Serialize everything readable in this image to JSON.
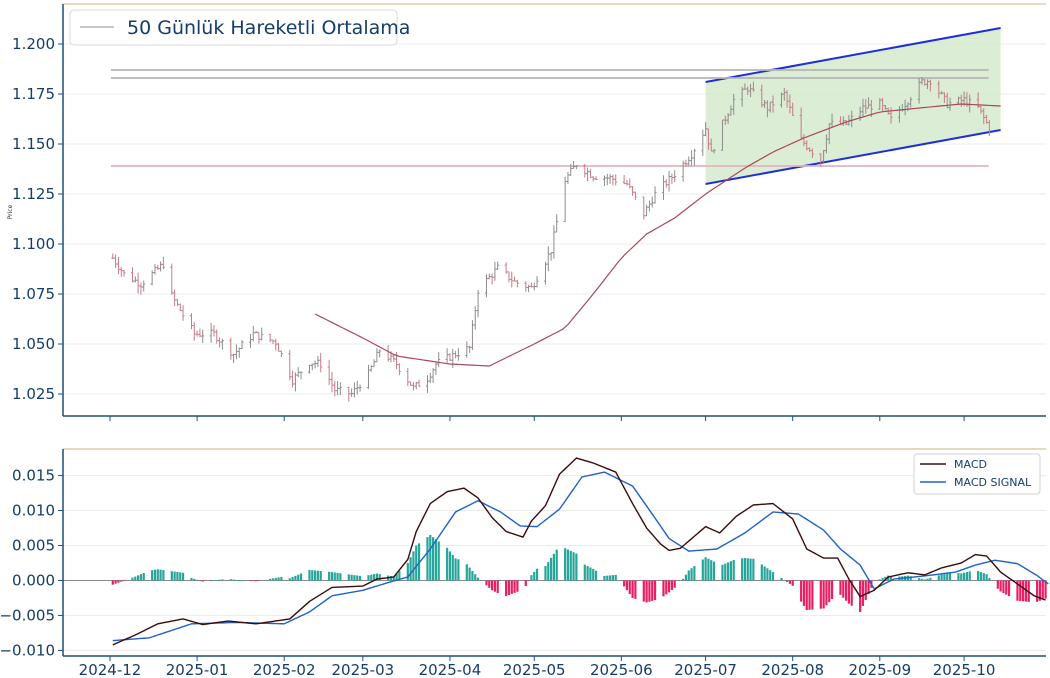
{
  "chart_data": [
    {
      "type": "candlestick",
      "ylabel": "Price",
      "ylim": [
        1.014,
        1.22
      ],
      "yticks": [
        "1.025",
        "1.050",
        "1.075",
        "1.100",
        "1.125",
        "1.150",
        "1.175",
        "1.200"
      ],
      "legend": {
        "position": "top-left",
        "entries": [
          "50 Günlük Hareketli Ortalama"
        ]
      },
      "x_start": "2024-12-01",
      "x_end": "2025-10-16",
      "price_keypoints": [
        [
          "2024-12-02",
          1.093
        ],
        [
          "2024-12-06",
          1.085
        ],
        [
          "2024-12-12",
          1.08
        ],
        [
          "2024-12-20",
          1.09
        ],
        [
          "2024-12-23",
          1.074
        ],
        [
          "2024-12-31",
          1.055
        ],
        [
          "2025-01-07",
          1.055
        ],
        [
          "2025-01-14",
          1.045
        ],
        [
          "2025-01-21",
          1.055
        ],
        [
          "2025-01-29",
          1.051
        ],
        [
          "2025-02-04",
          1.032
        ],
        [
          "2025-02-10",
          1.041
        ],
        [
          "2025-02-14",
          1.04
        ],
        [
          "2025-02-19",
          1.027
        ],
        [
          "2025-02-25",
          1.025
        ],
        [
          "2025-03-03",
          1.035
        ],
        [
          "2025-03-07",
          1.047
        ],
        [
          "2025-03-13",
          1.04
        ],
        [
          "2025-03-19",
          1.028
        ],
        [
          "2025-03-24",
          1.033
        ],
        [
          "2025-03-27",
          1.04
        ],
        [
          "2025-04-03",
          1.045
        ],
        [
          "2025-04-08",
          1.048
        ],
        [
          "2025-04-11",
          1.077
        ],
        [
          "2025-04-18",
          1.088
        ],
        [
          "2025-04-24",
          1.081
        ],
        [
          "2025-04-30",
          1.078
        ],
        [
          "2025-05-07",
          1.097
        ],
        [
          "2025-05-12",
          1.132
        ],
        [
          "2025-05-16",
          1.14
        ],
        [
          "2025-05-22",
          1.134
        ],
        [
          "2025-05-28",
          1.133
        ],
        [
          "2025-06-03",
          1.13
        ],
        [
          "2025-06-09",
          1.115
        ],
        [
          "2025-06-13",
          1.125
        ],
        [
          "2025-06-20",
          1.135
        ],
        [
          "2025-06-26",
          1.145
        ],
        [
          "2025-07-01",
          1.158
        ],
        [
          "2025-07-03",
          1.145
        ],
        [
          "2025-07-07",
          1.16
        ],
        [
          "2025-07-11",
          1.172
        ],
        [
          "2025-07-16",
          1.178
        ],
        [
          "2025-07-23",
          1.168
        ],
        [
          "2025-07-29",
          1.175
        ],
        [
          "2025-08-04",
          1.152
        ],
        [
          "2025-08-11",
          1.142
        ],
        [
          "2025-08-14",
          1.16
        ],
        [
          "2025-08-20",
          1.16
        ],
        [
          "2025-08-26",
          1.168
        ],
        [
          "2025-09-01",
          1.17
        ],
        [
          "2025-09-05",
          1.162
        ],
        [
          "2025-09-11",
          1.172
        ],
        [
          "2025-09-16",
          1.181
        ],
        [
          "2025-09-19",
          1.182
        ],
        [
          "2025-09-25",
          1.17
        ],
        [
          "2025-10-01",
          1.172
        ],
        [
          "2025-10-06",
          1.168
        ],
        [
          "2025-10-10",
          1.158
        ]
      ],
      "ma50": [
        [
          "2025-02-12",
          1.065
        ],
        [
          "2025-03-01",
          1.053
        ],
        [
          "2025-03-13",
          1.044
        ],
        [
          "2025-04-01",
          1.04
        ],
        [
          "2025-04-15",
          1.039
        ],
        [
          "2025-05-01",
          1.05
        ],
        [
          "2025-05-12",
          1.058
        ],
        [
          "2025-05-22",
          1.075
        ],
        [
          "2025-06-01",
          1.093
        ],
        [
          "2025-06-10",
          1.105
        ],
        [
          "2025-06-20",
          1.113
        ],
        [
          "2025-07-01",
          1.125
        ],
        [
          "2025-07-15",
          1.138
        ],
        [
          "2025-07-25",
          1.146
        ],
        [
          "2025-08-05",
          1.153
        ],
        [
          "2025-08-20",
          1.161
        ],
        [
          "2025-09-01",
          1.166
        ],
        [
          "2025-09-15",
          1.168
        ],
        [
          "2025-09-30",
          1.17
        ],
        [
          "2025-10-14",
          1.169
        ]
      ],
      "horizontal_levels": [
        {
          "value": 1.187,
          "color": "#b5b5b5",
          "from": "2024-12-01",
          "to": "2025-10-14"
        },
        {
          "value": 1.183,
          "color": "#b5b5b5",
          "from": "2024-12-01",
          "to": "2025-10-14"
        },
        {
          "value": 1.139,
          "color": "#e0b5bd",
          "from": "2024-12-01",
          "to": "2025-10-14"
        }
      ],
      "channel": {
        "from": "2025-07-01",
        "to": "2025-10-14",
        "upper": [
          1.181,
          1.208
        ],
        "lower": [
          1.13,
          1.157
        ],
        "line_color": "#1f2fd6",
        "fill_color": "#cfe8c7"
      }
    },
    {
      "type": "line",
      "ylim": [
        -0.0108,
        0.0188
      ],
      "yticks": [
        "−0.010",
        "−0.005",
        "0.000",
        "0.005",
        "0.010",
        "0.015"
      ],
      "xticks": [
        "2024-12",
        "2025-01",
        "2025-02",
        "2025-03",
        "2025-04",
        "2025-05",
        "2025-06",
        "2025-07",
        "2025-08",
        "2025-09",
        "2025-10"
      ],
      "legend": {
        "position": "top-right",
        "entries": [
          "MACD",
          "MACD SIGNAL"
        ]
      },
      "macd": [
        [
          "2024-12-02",
          -0.0092
        ],
        [
          "2024-12-10",
          -0.0078
        ],
        [
          "2024-12-18",
          -0.0062
        ],
        [
          "2024-12-27",
          -0.0055
        ],
        [
          "2025-01-03",
          -0.0063
        ],
        [
          "2025-01-12",
          -0.0058
        ],
        [
          "2025-01-22",
          -0.0062
        ],
        [
          "2025-02-03",
          -0.0055
        ],
        [
          "2025-02-10",
          -0.003
        ],
        [
          "2025-02-18",
          -0.001
        ],
        [
          "2025-03-01",
          -0.0008
        ],
        [
          "2025-03-06",
          0.0002
        ],
        [
          "2025-03-12",
          0.0005
        ],
        [
          "2025-03-17",
          0.003
        ],
        [
          "2025-03-20",
          0.007
        ],
        [
          "2025-03-25",
          0.011
        ],
        [
          "2025-03-31",
          0.0127
        ],
        [
          "2025-04-06",
          0.0132
        ],
        [
          "2025-04-11",
          0.0118
        ],
        [
          "2025-04-16",
          0.009
        ],
        [
          "2025-04-21",
          0.007
        ],
        [
          "2025-04-24",
          0.0066
        ],
        [
          "2025-04-27",
          0.0062
        ],
        [
          "2025-04-30",
          0.0085
        ],
        [
          "2025-05-05",
          0.0107
        ],
        [
          "2025-05-10",
          0.0152
        ],
        [
          "2025-05-16",
          0.0175
        ],
        [
          "2025-05-22",
          0.0168
        ],
        [
          "2025-05-30",
          0.0155
        ],
        [
          "2025-06-05",
          0.011
        ],
        [
          "2025-06-10",
          0.0075
        ],
        [
          "2025-06-15",
          0.0052
        ],
        [
          "2025-06-18",
          0.0043
        ],
        [
          "2025-06-22",
          0.0046
        ],
        [
          "2025-07-01",
          0.0077
        ],
        [
          "2025-07-06",
          0.0068
        ],
        [
          "2025-07-12",
          0.0092
        ],
        [
          "2025-07-18",
          0.0108
        ],
        [
          "2025-07-25",
          0.011
        ],
        [
          "2025-08-01",
          0.0088
        ],
        [
          "2025-08-06",
          0.0045
        ],
        [
          "2025-08-12",
          0.0032
        ],
        [
          "2025-08-17",
          0.0032
        ],
        [
          "2025-08-21",
          0.0002
        ],
        [
          "2025-08-25",
          -0.0023
        ],
        [
          "2025-08-30",
          -0.0014
        ],
        [
          "2025-09-04",
          0.0005
        ],
        [
          "2025-09-11",
          0.0011
        ],
        [
          "2025-09-17",
          0.0008
        ],
        [
          "2025-09-23",
          0.0018
        ],
        [
          "2025-09-30",
          0.0025
        ],
        [
          "2025-10-05",
          0.0037
        ],
        [
          "2025-10-09",
          0.0035
        ],
        [
          "2025-10-14",
          0.0012
        ],
        [
          "2025-10-20",
          -0.0005
        ],
        [
          "2025-10-26",
          -0.0022
        ],
        [
          "2025-10-30",
          -0.0028
        ]
      ],
      "signal": [
        [
          "2024-12-02",
          -0.0086
        ],
        [
          "2024-12-15",
          -0.0082
        ],
        [
          "2024-12-30",
          -0.0062
        ],
        [
          "2025-01-15",
          -0.006
        ],
        [
          "2025-02-01",
          -0.0062
        ],
        [
          "2025-02-10",
          -0.0045
        ],
        [
          "2025-02-18",
          -0.0022
        ],
        [
          "2025-03-01",
          -0.0014
        ],
        [
          "2025-03-10",
          -0.0003
        ],
        [
          "2025-03-17",
          0.0005
        ],
        [
          "2025-03-25",
          0.0045
        ],
        [
          "2025-04-03",
          0.0098
        ],
        [
          "2025-04-11",
          0.0114
        ],
        [
          "2025-04-19",
          0.0098
        ],
        [
          "2025-04-26",
          0.0078
        ],
        [
          "2025-05-02",
          0.0077
        ],
        [
          "2025-05-10",
          0.0102
        ],
        [
          "2025-05-18",
          0.0148
        ],
        [
          "2025-05-26",
          0.0155
        ],
        [
          "2025-06-05",
          0.0135
        ],
        [
          "2025-06-12",
          0.0095
        ],
        [
          "2025-06-18",
          0.006
        ],
        [
          "2025-06-25",
          0.0042
        ],
        [
          "2025-07-05",
          0.0045
        ],
        [
          "2025-07-15",
          0.0068
        ],
        [
          "2025-07-25",
          0.0098
        ],
        [
          "2025-08-03",
          0.0095
        ],
        [
          "2025-08-12",
          0.0072
        ],
        [
          "2025-08-18",
          0.0045
        ],
        [
          "2025-08-25",
          0.0022
        ],
        [
          "2025-08-30",
          -0.0012
        ],
        [
          "2025-09-06",
          0.0002
        ],
        [
          "2025-09-18",
          0.0007
        ],
        [
          "2025-09-28",
          0.0012
        ],
        [
          "2025-10-05",
          0.0022
        ],
        [
          "2025-10-12",
          0.0029
        ],
        [
          "2025-10-20",
          0.0024
        ],
        [
          "2025-10-27",
          0.0007
        ],
        [
          "2025-10-31",
          -0.0005
        ]
      ]
    }
  ]
}
